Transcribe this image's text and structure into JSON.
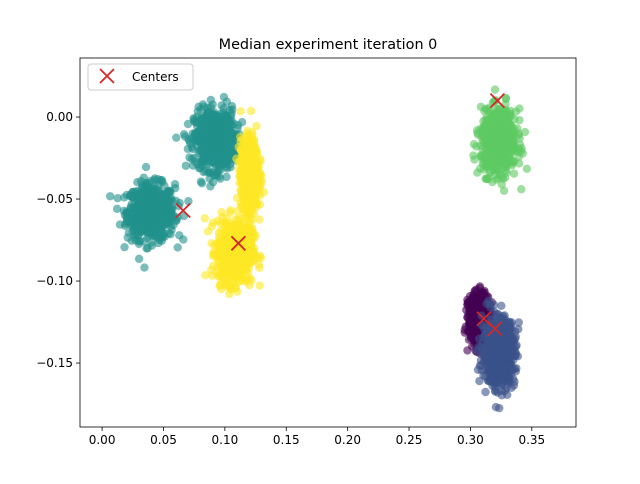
{
  "chart_data": {
    "type": "scatter",
    "title": "Median experiment iteration 0",
    "xlabel": "",
    "ylabel": "",
    "xlim": [
      -0.018,
      0.386
    ],
    "ylim": [
      -0.189,
      0.036
    ],
    "xticks": [
      0.0,
      0.05,
      0.1,
      0.15,
      0.2,
      0.25,
      0.3,
      0.35
    ],
    "xtick_labels": [
      "0.00",
      "0.05",
      "0.10",
      "0.15",
      "0.20",
      "0.25",
      "0.30",
      "0.35"
    ],
    "yticks": [
      0.0,
      -0.05,
      -0.1,
      -0.15
    ],
    "ytick_labels": [
      "0.00",
      "−0.05",
      "−0.10",
      "−0.15"
    ],
    "grid": false,
    "legend": {
      "position": "top-left",
      "entries": [
        "Centers"
      ]
    },
    "clusters": [
      {
        "color": "#21918c",
        "center_x": 0.04,
        "center_y": -0.058,
        "spread_x": 0.016,
        "spread_y": 0.014
      },
      {
        "color": "#21918c",
        "center_x": 0.092,
        "center_y": -0.014,
        "spread_x": 0.014,
        "spread_y": 0.015
      },
      {
        "color": "#fde725",
        "center_x": 0.108,
        "center_y": -0.082,
        "spread_x": 0.012,
        "spread_y": 0.016
      },
      {
        "color": "#fde725",
        "center_x": 0.12,
        "center_y": -0.035,
        "spread_x": 0.006,
        "spread_y": 0.018
      },
      {
        "color": "#5ec962",
        "center_x": 0.323,
        "center_y": -0.015,
        "spread_x": 0.012,
        "spread_y": 0.016
      },
      {
        "color": "#440154",
        "center_x": 0.307,
        "center_y": -0.123,
        "spread_x": 0.007,
        "spread_y": 0.012
      },
      {
        "color": "#3b528b",
        "center_x": 0.323,
        "center_y": -0.143,
        "spread_x": 0.011,
        "spread_y": 0.017
      }
    ],
    "centers": {
      "name": "Centers",
      "color": "#d62728",
      "x": [
        0.066,
        0.111,
        0.322,
        0.311,
        0.32
      ],
      "y": [
        -0.057,
        -0.077,
        0.01,
        -0.123,
        -0.129
      ]
    }
  }
}
